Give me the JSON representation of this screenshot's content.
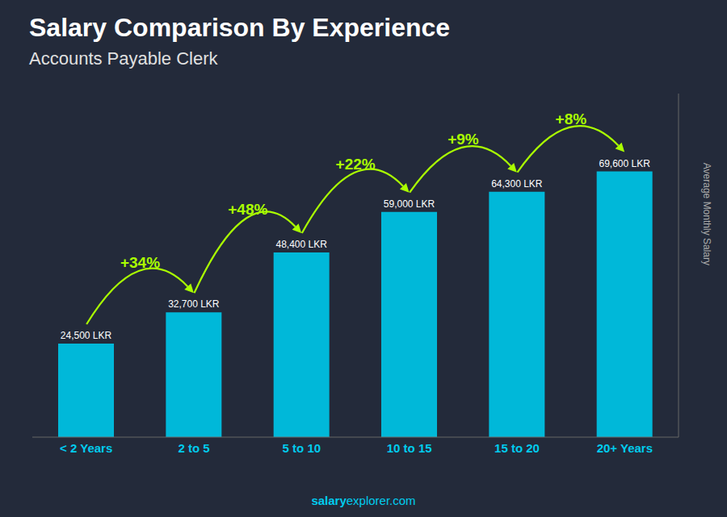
{
  "chart_data": {
    "type": "bar",
    "title": "Salary Comparison By Experience",
    "subtitle": "Accounts Payable Clerk",
    "ylabel": "Average Monthly Salary",
    "categories": [
      "< 2 Years",
      "2 to 5",
      "5 to 10",
      "10 to 15",
      "15 to 20",
      "20+ Years"
    ],
    "values": [
      24500,
      32700,
      48400,
      59000,
      64300,
      69600
    ],
    "value_labels": [
      "24,500 LKR",
      "32,700 LKR",
      "48,400 LKR",
      "59,000 LKR",
      "64,300 LKR",
      "69,600 LKR"
    ],
    "data_labels": true,
    "annotations": [
      "+34%",
      "+48%",
      "+22%",
      "+9%",
      "+8%"
    ],
    "footer": [
      "salary",
      "explorer.com"
    ],
    "color": "#00b8d9",
    "ylim": [
      0,
      90000
    ],
    "yticks": [],
    "tick_labels": "x",
    "grid": false
  }
}
